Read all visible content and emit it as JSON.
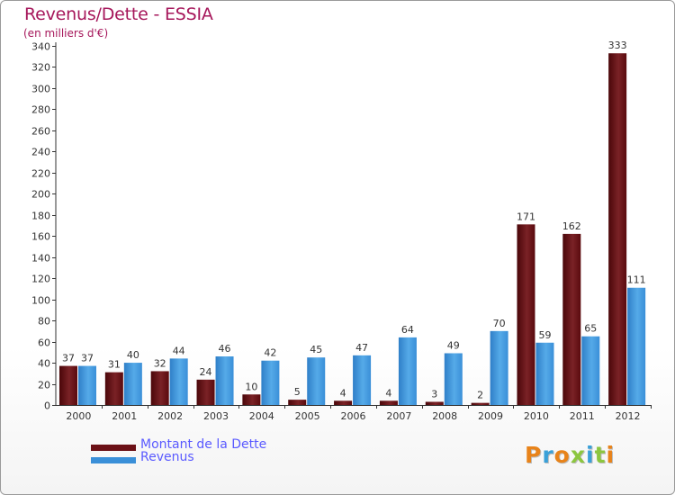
{
  "chart_data": {
    "type": "bar",
    "title": "Revenus/Dette - ESSIA",
    "subtitle": "(en milliers d'€)",
    "categories": [
      "2000",
      "2001",
      "2002",
      "2003",
      "2004",
      "2005",
      "2006",
      "2007",
      "2008",
      "2009",
      "2010",
      "2011",
      "2012"
    ],
    "series": [
      {
        "name": "Montant de la Dette",
        "color": "#6b1016",
        "values": [
          37,
          31,
          32,
          24,
          10,
          5,
          4,
          4,
          3,
          2,
          171,
          162,
          333
        ]
      },
      {
        "name": "Revenus",
        "color": "#3a8fd8",
        "values": [
          37,
          40,
          44,
          46,
          42,
          45,
          47,
          64,
          49,
          70,
          59,
          65,
          111
        ]
      }
    ],
    "ylim": [
      0,
      340
    ],
    "yticks": [
      0,
      20,
      40,
      60,
      80,
      100,
      120,
      140,
      160,
      180,
      200,
      220,
      240,
      260,
      280,
      300,
      320,
      340
    ],
    "grid": false,
    "data_labels": true,
    "legend_position": "bottom-left"
  },
  "logo": {
    "text": "Proxiti"
  }
}
